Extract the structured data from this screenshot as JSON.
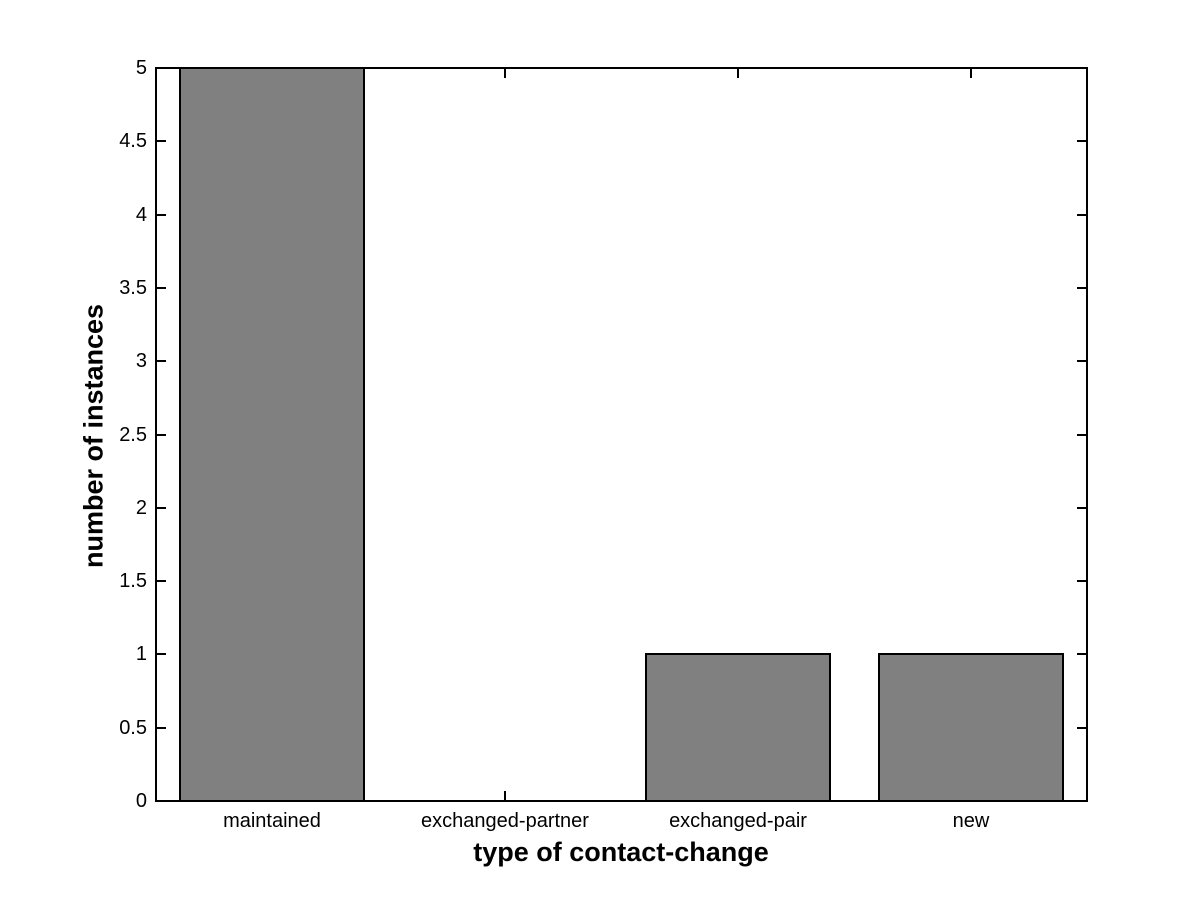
{
  "chart_data": {
    "type": "bar",
    "categories": [
      "maintained",
      "exchanged-partner",
      "exchanged-pair",
      "new"
    ],
    "values": [
      5,
      0,
      1,
      1
    ],
    "xlabel": "type of contact-change",
    "ylabel": "number of instances",
    "ylim": [
      0,
      5
    ],
    "ytick_labels": [
      "0",
      "0.5",
      "1",
      "1.5",
      "2",
      "2.5",
      "3",
      "3.5",
      "4",
      "4.5",
      "5"
    ],
    "bar_color": "#808080",
    "bar_edge_color": "#000000",
    "axis_color": "#000000",
    "background_color": "#ffffff",
    "grid": false,
    "legend": "none",
    "bar_width_fraction": 0.8
  }
}
